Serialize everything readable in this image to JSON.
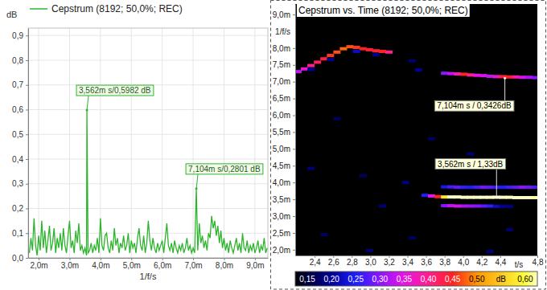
{
  "chart_data": [
    {
      "type": "line",
      "x": [
        1.7,
        1.75,
        1.8,
        1.85,
        1.9,
        1.95,
        2,
        2.05,
        2.1,
        2.15,
        2.2,
        2.25,
        2.3,
        2.35,
        2.4,
        2.45,
        2.5,
        2.55,
        2.6,
        2.65,
        2.7,
        2.75,
        2.8,
        2.85,
        2.9,
        2.95,
        3,
        3.05,
        3.1,
        3.15,
        3.2,
        3.25,
        3.3,
        3.35,
        3.4,
        3.45,
        3.5,
        3.55,
        3.562,
        3.6,
        3.65,
        3.7,
        3.75,
        3.8,
        3.85,
        3.9,
        3.95,
        4,
        4.05,
        4.1,
        4.15,
        4.2,
        4.25,
        4.3,
        4.35,
        4.4,
        4.45,
        4.5,
        4.55,
        4.6,
        4.65,
        4.7,
        4.75,
        4.8,
        4.85,
        4.9,
        4.95,
        5,
        5.05,
        5.1,
        5.15,
        5.2,
        5.25,
        5.3,
        5.35,
        5.4,
        5.45,
        5.5,
        5.55,
        5.6,
        5.65,
        5.7,
        5.75,
        5.8,
        5.85,
        5.9,
        5.95,
        6,
        6.05,
        6.1,
        6.15,
        6.2,
        6.25,
        6.3,
        6.35,
        6.4,
        6.45,
        6.5,
        6.55,
        6.6,
        6.65,
        6.7,
        6.75,
        6.8,
        6.85,
        6.9,
        6.95,
        7,
        7.05,
        7.104,
        7.15,
        7.2,
        7.25,
        7.3,
        7.35,
        7.4,
        7.45,
        7.5,
        7.55,
        7.6,
        7.65,
        7.7,
        7.75,
        7.8,
        7.85,
        7.9,
        7.95,
        8,
        8.05,
        8.1,
        8.15,
        8.2,
        8.25,
        8.3,
        8.35,
        8.4,
        8.45,
        8.5,
        8.55,
        8.6,
        8.65,
        8.7,
        8.75,
        8.8,
        8.85,
        8.9,
        8.95,
        9,
        9.05,
        9.1,
        9.15,
        9.2,
        9.25,
        9.3,
        9.35,
        9.4
      ],
      "series": [
        {
          "name": "Cepstrum (8192; 50,0%; REC)",
          "color": "#2db42d",
          "values": [
            0.02,
            0.08,
            0.03,
            0.16,
            0.05,
            0.01,
            0.09,
            0.03,
            0.15,
            0.04,
            0.11,
            0.02,
            0.07,
            0.13,
            0.03,
            0.06,
            0.12,
            0.02,
            0.08,
            0.04,
            0.1,
            0.03,
            0.12,
            0.05,
            0.02,
            0.09,
            0.15,
            0.04,
            0.07,
            0.02,
            0.11,
            0.06,
            0.14,
            0.03,
            0.05,
            0.02,
            0.04,
            0.01,
            0.5982,
            0.02,
            0.03,
            0.06,
            0.02,
            0.05,
            0.03,
            0.08,
            0.02,
            0.16,
            0.05,
            0.03,
            0.09,
            0.1,
            0.04,
            0.02,
            0.07,
            0.03,
            0.12,
            0.05,
            0.08,
            0.02,
            0.06,
            0.04,
            0.09,
            0.03,
            0.05,
            0.1,
            0.02,
            0.07,
            0.04,
            0.06,
            0.02,
            0.08,
            0.12,
            0.05,
            0.03,
            0.09,
            0.02,
            0.06,
            0.15,
            0.07,
            0.03,
            0.08,
            0.04,
            0.02,
            0.06,
            0.03,
            0.05,
            0.07,
            0.02,
            0.08,
            0.14,
            0.05,
            0.03,
            0.06,
            0.02,
            0.07,
            0.04,
            0.02,
            0.05,
            0.03,
            0.06,
            0.02,
            0.04,
            0.08,
            0.03,
            0.05,
            0.02,
            0.04,
            0.02,
            0.2801,
            0.03,
            0.14,
            0.06,
            0.09,
            0.04,
            0.07,
            0.03,
            0.1,
            0.08,
            0.17,
            0.12,
            0.15,
            0.09,
            0.13,
            0.06,
            0.11,
            0.04,
            0.08,
            0.03,
            0.06,
            0.02,
            0.07,
            0.04,
            0.02,
            0.05,
            0.08,
            0.03,
            0.06,
            0.02,
            0.1,
            0.04,
            0.03,
            0.07,
            0.02,
            0.05,
            0.03,
            0.06,
            0.02,
            0.04,
            0.07,
            0.02,
            0.05,
            0.03,
            0.08,
            0.02,
            0.04
          ]
        }
      ],
      "xlim": [
        1.66,
        9.42
      ],
      "xticks": [
        {
          "value": 2,
          "label": "2,0m"
        },
        {
          "value": 3,
          "label": "3,0m"
        },
        {
          "value": 4,
          "label": "4,0m"
        },
        {
          "value": 5,
          "label": "5,0m"
        },
        {
          "value": 6,
          "label": "6,0m"
        },
        {
          "value": 7,
          "label": "7,0m"
        },
        {
          "value": 8,
          "label": "8,0m"
        },
        {
          "value": 9,
          "label": "9,0m"
        }
      ],
      "ylim": [
        0,
        0.93
      ],
      "yticks": [
        {
          "value": 0,
          "label": "0,0"
        },
        {
          "value": 0.1,
          "label": "0,1"
        },
        {
          "value": 0.2,
          "label": "0,2"
        },
        {
          "value": 0.3,
          "label": "0,3"
        },
        {
          "value": 0.4,
          "label": "0,4"
        },
        {
          "value": 0.5,
          "label": "0,5"
        },
        {
          "value": 0.6,
          "label": "0,6"
        },
        {
          "value": 0.7,
          "label": "0,7"
        },
        {
          "value": 0.8,
          "label": "0,8"
        },
        {
          "value": 0.9,
          "label": "0,9"
        }
      ],
      "x_label": "1/f/s",
      "y_label": "dB",
      "grid": true,
      "legend": "top-left",
      "annotations": [
        {
          "text": "3,562m s/0,5982 dB",
          "x": 3.562,
          "y": 0.5982
        },
        {
          "text": "7,104m s/0,2801 dB",
          "x": 7.104,
          "y": 0.2801
        }
      ]
    },
    {
      "type": "heatmap",
      "title": "Cepstrum vs. Time (8192; 50,0%; REC)",
      "x_label": "t/s",
      "y_label": "1/f/s",
      "xlim": [
        2.19,
        4.8
      ],
      "xticks": [
        {
          "value": 2.4,
          "label": "2,4"
        },
        {
          "value": 2.6,
          "label": "2,6"
        },
        {
          "value": 2.8,
          "label": "2,8"
        },
        {
          "value": 3,
          "label": "3,0"
        },
        {
          "value": 3.2,
          "label": "3,2"
        },
        {
          "value": 3.4,
          "label": "3,4"
        },
        {
          "value": 3.6,
          "label": "3,6"
        },
        {
          "value": 3.8,
          "label": "3,8"
        },
        {
          "value": 4,
          "label": "4,0"
        },
        {
          "value": 4.2,
          "label": "4,2"
        },
        {
          "value": 4.4,
          "label": "4,4"
        },
        {
          "value": 4.8,
          "label": "4,8"
        }
      ],
      "ylim": [
        1.83,
        9.31
      ],
      "yticks": [
        {
          "value": 2,
          "label": "2,0m"
        },
        {
          "value": 2.5,
          "label": "2,5m"
        },
        {
          "value": 3,
          "label": "3,0m"
        },
        {
          "value": 3.5,
          "label": "3,5m"
        },
        {
          "value": 4,
          "label": "4,0m"
        },
        {
          "value": 4.5,
          "label": "4,5m"
        },
        {
          "value": 5,
          "label": "5,0m"
        },
        {
          "value": 5.5,
          "label": "5,5m"
        },
        {
          "value": 6,
          "label": "6,0m"
        },
        {
          "value": 6.5,
          "label": "6,5m"
        },
        {
          "value": 7,
          "label": "7,0m"
        },
        {
          "value": 7.5,
          "label": "7,5m"
        },
        {
          "value": 8,
          "label": "8,0m"
        },
        {
          "value": 9,
          "label": "9,0m"
        }
      ],
      "grid": false,
      "cells": [
        [
          2.22,
          7.3,
          0.33
        ],
        [
          2.29,
          7.38,
          0.36
        ],
        [
          2.36,
          7.48,
          0.4
        ],
        [
          2.43,
          7.58,
          0.42
        ],
        [
          2.5,
          7.68,
          0.44
        ],
        [
          2.57,
          7.78,
          0.46
        ],
        [
          2.64,
          7.88,
          0.47
        ],
        [
          2.71,
          7.98,
          0.48
        ],
        [
          2.78,
          8.04,
          0.47
        ],
        [
          2.85,
          8.02,
          0.46
        ],
        [
          2.92,
          7.98,
          0.45
        ],
        [
          2.99,
          7.95,
          0.44
        ],
        [
          3.06,
          7.92,
          0.44
        ],
        [
          3.13,
          7.9,
          0.45
        ],
        [
          3.2,
          7.88,
          0.4
        ],
        [
          2.36,
          7.36,
          0.2
        ],
        [
          2.57,
          7.66,
          0.2
        ],
        [
          2.85,
          7.9,
          0.22
        ],
        [
          3.06,
          7.8,
          0.2
        ],
        [
          3.45,
          7.62,
          0.18
        ],
        [
          3.52,
          7.35,
          0.2
        ],
        [
          2.36,
          4.42,
          0.18
        ],
        [
          2.92,
          4.2,
          0.17
        ],
        [
          3.38,
          4.0,
          0.19
        ],
        [
          3.13,
          3.3,
          0.18
        ],
        [
          2.5,
          2.45,
          0.17
        ],
        [
          2.99,
          1.98,
          0.18
        ],
        [
          4.29,
          1.95,
          0.19
        ],
        [
          3.45,
          2.35,
          0.17
        ],
        [
          3.66,
          5.3,
          0.17
        ],
        [
          4.08,
          4.85,
          0.18
        ],
        [
          4.5,
          2.6,
          0.18
        ],
        [
          2.64,
          5.9,
          0.17
        ],
        [
          3.59,
          3.62,
          0.25
        ],
        [
          3.66,
          3.6,
          0.35
        ],
        [
          3.8,
          7.25,
          0.3
        ],
        [
          3.87,
          7.24,
          0.33
        ],
        [
          3.94,
          7.23,
          0.38
        ],
        [
          4.01,
          7.22,
          0.45
        ],
        [
          4.08,
          7.2,
          0.4
        ],
        [
          4.15,
          7.19,
          0.35
        ],
        [
          4.22,
          7.18,
          0.34
        ],
        [
          4.29,
          7.16,
          0.33
        ],
        [
          4.36,
          7.15,
          0.36
        ],
        [
          4.43,
          7.15,
          0.44
        ],
        [
          4.5,
          7.14,
          0.45
        ],
        [
          4.57,
          7.14,
          0.38
        ],
        [
          4.64,
          7.13,
          0.34
        ],
        [
          4.71,
          7.13,
          0.32
        ],
        [
          4.78,
          7.12,
          0.3
        ],
        [
          3.8,
          3.87,
          0.24
        ],
        [
          3.87,
          3.87,
          0.27
        ],
        [
          3.94,
          3.86,
          0.28
        ],
        [
          4.01,
          3.86,
          0.26
        ],
        [
          4.08,
          3.86,
          0.25
        ],
        [
          4.15,
          3.86,
          0.27
        ],
        [
          4.22,
          3.86,
          0.29
        ],
        [
          4.29,
          3.86,
          0.28
        ],
        [
          4.36,
          3.86,
          0.26
        ],
        [
          4.43,
          3.86,
          0.25
        ],
        [
          4.5,
          3.86,
          0.27
        ],
        [
          4.57,
          3.86,
          0.28
        ],
        [
          4.64,
          3.86,
          0.3
        ],
        [
          4.71,
          3.86,
          0.29
        ],
        [
          4.78,
          3.86,
          0.27
        ],
        [
          3.8,
          3.31,
          0.3
        ],
        [
          3.87,
          3.31,
          0.33
        ],
        [
          3.94,
          3.3,
          0.34
        ],
        [
          4.01,
          3.3,
          0.32
        ],
        [
          4.08,
          3.3,
          0.31
        ],
        [
          4.15,
          3.3,
          0.3
        ],
        [
          4.22,
          3.3,
          0.28
        ],
        [
          4.29,
          3.3,
          0.26
        ],
        [
          4.36,
          3.29,
          0.22
        ],
        [
          4.43,
          3.29,
          0.2
        ],
        [
          4.5,
          3.29,
          0.19
        ],
        [
          3.73,
          3.58,
          0.45
        ],
        [
          3.8,
          3.57,
          0.58
        ],
        [
          3.87,
          3.57,
          0.65
        ],
        [
          3.94,
          3.57,
          0.7
        ],
        [
          4.01,
          3.56,
          0.72
        ],
        [
          4.08,
          3.56,
          0.75
        ],
        [
          4.15,
          3.56,
          0.78
        ],
        [
          4.22,
          3.56,
          0.8
        ],
        [
          4.29,
          3.56,
          0.85
        ],
        [
          4.36,
          3.562,
          1.33
        ],
        [
          4.43,
          3.56,
          0.9
        ],
        [
          4.5,
          3.56,
          0.82
        ],
        [
          4.57,
          3.55,
          0.75
        ],
        [
          4.64,
          3.55,
          0.7
        ],
        [
          4.71,
          3.55,
          0.66
        ],
        [
          4.78,
          3.55,
          0.62
        ]
      ],
      "colorbar": {
        "range": [
          0.125,
          0.625
        ],
        "label": "dB",
        "ticks": [
          {
            "value": 0.15,
            "label": "0,15"
          },
          {
            "value": 0.2,
            "label": "0,20"
          },
          {
            "value": 0.25,
            "label": "0,25"
          },
          {
            "value": 0.3,
            "label": "0,30"
          },
          {
            "value": 0.35,
            "label": "0,35"
          },
          {
            "value": 0.4,
            "label": "0,40"
          },
          {
            "value": 0.45,
            "label": "0,45"
          },
          {
            "value": 0.5,
            "label": "0,50"
          },
          {
            "value": 0.6,
            "label": "0,60"
          }
        ]
      },
      "annotations": [
        {
          "text": "7,104m s / 0,3426dB",
          "x": 4.45,
          "y": 7.104
        },
        {
          "text": "3,562m s / 1,33dB",
          "x": 4.36,
          "y": 3.562
        }
      ]
    }
  ]
}
